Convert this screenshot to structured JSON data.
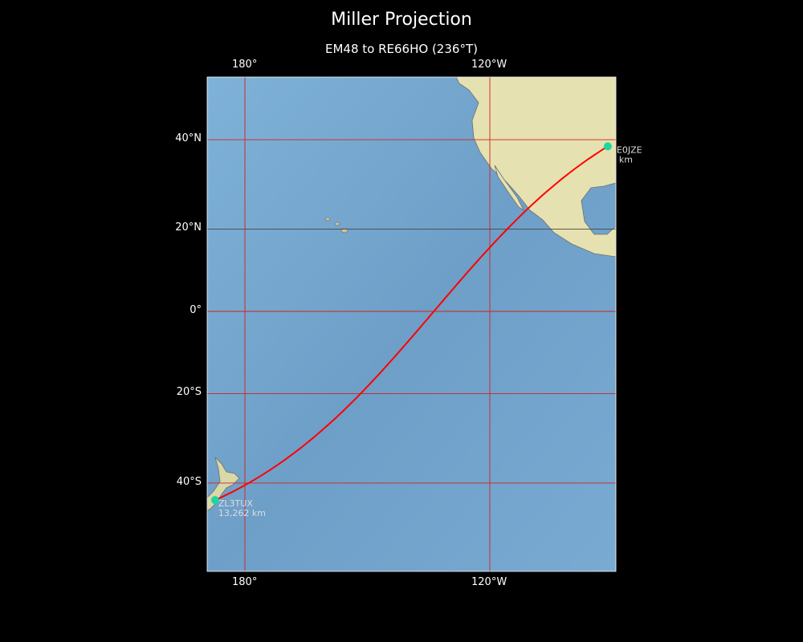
{
  "title": "Miller Projection",
  "subtitle": "EM48 to RE66HO (236°T)",
  "map": {
    "projection": "Miller",
    "extent": {
      "lon_min": 170.8,
      "lon_max": -89.1,
      "lat_min": -59,
      "lat_max": 54
    },
    "ocean_color": "#7aaed3",
    "land_color": "#e8e3b5",
    "gridline_color": "#d42020",
    "path_color": "#ff0000",
    "marker_color": "#1ed6a0"
  },
  "top_lon_labels": [
    "180°",
    "120°W"
  ],
  "bottom_lon_labels": [
    "180°",
    "120°W"
  ],
  "lat_labels": [
    "40°N",
    "20°N",
    "0°",
    "20°S",
    "40°S"
  ],
  "stations": [
    {
      "call": "E0JZE",
      "distance": "km",
      "lat": 38.6,
      "lon": -91.1
    },
    {
      "call": "ZL3TUX",
      "distance": "13,262 km",
      "lat": -43.5,
      "lon": 172.7
    }
  ]
}
